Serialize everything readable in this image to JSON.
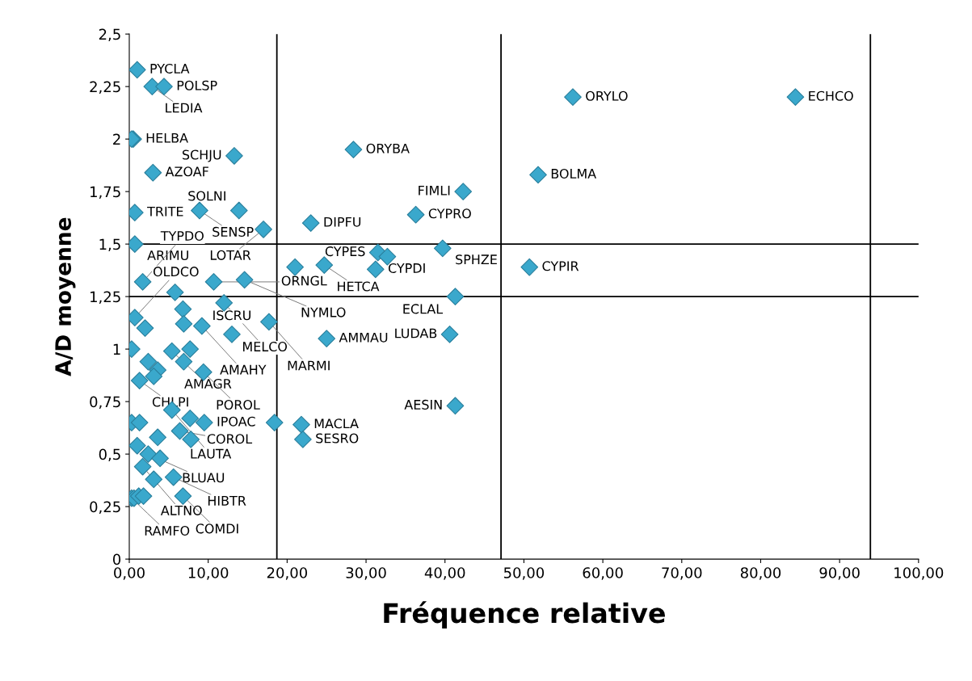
{
  "chart_data": {
    "type": "scatter",
    "xlabel": "Fréquence relative",
    "ylabel": "A/D moyenne",
    "xlim": [
      0,
      100
    ],
    "ylim": [
      0,
      2.5
    ],
    "xticks": [
      {
        "value": 0,
        "label": "0,00"
      },
      {
        "value": 10,
        "label": "10,00"
      },
      {
        "value": 20,
        "label": "20,00"
      },
      {
        "value": 30,
        "label": "30,00"
      },
      {
        "value": 40,
        "label": "40,00"
      },
      {
        "value": 50,
        "label": "50,00"
      },
      {
        "value": 60,
        "label": "60,00"
      },
      {
        "value": 70,
        "label": "70,00"
      },
      {
        "value": 80,
        "label": "80,00"
      },
      {
        "value": 90,
        "label": "90,00"
      },
      {
        "value": 100,
        "label": "100,00"
      }
    ],
    "yticks": [
      0,
      {
        "value": 0.25,
        "label": "0,25"
      },
      {
        "value": 0.5,
        "label": "0,5"
      },
      {
        "value": 0.75,
        "label": "0,75"
      },
      1,
      {
        "value": 1.25,
        "label": "1,25"
      },
      {
        "value": 1.5,
        "label": "1,5"
      },
      {
        "value": 1.75,
        "label": "1,75"
      },
      2,
      {
        "value": 2.25,
        "label": "2,25"
      },
      {
        "value": 2.5,
        "label": "2,5"
      }
    ],
    "marker": "diamond",
    "grid": false,
    "legend": false,
    "series": [
      {
        "color": "#3aa8cc",
        "x": [
          1.0,
          2.9,
          4.4,
          0.5,
          0.3,
          13.3,
          3.0,
          28.4,
          0.7,
          8.9,
          13.9,
          17.0,
          23.0,
          36.3,
          42.3,
          51.8,
          56.2,
          84.4,
          0.7,
          21.0,
          24.7,
          31.2,
          31.5,
          32.7,
          39.7,
          50.7,
          1.7,
          5.8,
          10.7,
          14.6,
          6.8,
          12.0,
          41.3,
          0.7,
          2.0,
          6.9,
          9.2,
          13.0,
          17.7,
          25.0,
          40.6,
          0.3,
          5.4,
          7.7,
          6.9,
          2.4,
          3.6,
          3.1,
          1.3,
          9.4,
          41.3,
          5.4,
          0.3,
          1.3,
          7.7,
          9.5,
          6.4,
          18.4,
          21.8,
          22.0,
          7.8,
          3.6,
          1.0,
          2.4,
          3.9,
          1.7,
          5.6,
          3.1,
          0.3,
          6.8,
          0.6,
          1.2,
          1.8
        ],
        "values": [
          2.33,
          2.25,
          2.25,
          2.0,
          2.0,
          1.92,
          1.84,
          1.95,
          1.65,
          1.66,
          1.66,
          1.57,
          1.6,
          1.64,
          1.75,
          1.83,
          2.2,
          2.2,
          1.5,
          1.39,
          1.4,
          1.38,
          1.46,
          1.44,
          1.48,
          1.39,
          1.32,
          1.27,
          1.32,
          1.33,
          1.19,
          1.22,
          1.25,
          1.15,
          1.1,
          1.12,
          1.11,
          1.07,
          1.13,
          1.05,
          1.07,
          1.0,
          0.99,
          1.0,
          0.94,
          0.94,
          0.9,
          0.87,
          0.85,
          0.89,
          0.73,
          0.71,
          0.65,
          0.65,
          0.67,
          0.65,
          0.61,
          0.65,
          0.64,
          0.57,
          0.57,
          0.58,
          0.54,
          0.5,
          0.48,
          0.44,
          0.39,
          0.38,
          0.29,
          0.3,
          0.29,
          0.3,
          0.3
        ]
      }
    ],
    "annotations": [
      {
        "text": "PYCLA",
        "x": 1.0,
        "y": 2.33
      },
      {
        "text": "LEDIA",
        "x": 2.9,
        "y": 2.25
      },
      {
        "text": "POLSP",
        "x": 4.4,
        "y": 2.25
      },
      {
        "text": "HELBA",
        "x": 0.5,
        "y": 2.0
      },
      {
        "text": "SCHJU",
        "x": 13.3,
        "y": 1.92
      },
      {
        "text": "AZOAF",
        "x": 3.0,
        "y": 1.84
      },
      {
        "text": "ORYBA",
        "x": 28.4,
        "y": 1.95
      },
      {
        "text": "TRITE",
        "x": 0.7,
        "y": 1.65
      },
      {
        "text": "SENSP",
        "x": 8.9,
        "y": 1.66
      },
      {
        "text": "SOLNI",
        "x": 13.9,
        "y": 1.66
      },
      {
        "text": "LOTAR",
        "x": 17.0,
        "y": 1.57
      },
      {
        "text": "DIPFU",
        "x": 23.0,
        "y": 1.6
      },
      {
        "text": "CYPRO",
        "x": 36.3,
        "y": 1.64
      },
      {
        "text": "FIMLI",
        "x": 42.3,
        "y": 1.75
      },
      {
        "text": "BOLMA",
        "x": 51.8,
        "y": 1.83
      },
      {
        "text": "ORYLO",
        "x": 56.2,
        "y": 2.2
      },
      {
        "text": "ECHCO",
        "x": 84.4,
        "y": 2.2
      },
      {
        "text": "ARIMU",
        "x": 0.7,
        "y": 1.5
      },
      {
        "text": "HETCA",
        "x": 24.7,
        "y": 1.4
      },
      {
        "text": "CYPDI",
        "x": 31.2,
        "y": 1.38
      },
      {
        "text": "CYPES",
        "x": 31.5,
        "y": 1.46
      },
      {
        "text": "SPHZE",
        "x": 39.7,
        "y": 1.48
      },
      {
        "text": "CYPIR",
        "x": 50.7,
        "y": 1.39
      },
      {
        "text": "TYPDO",
        "x": 1.7,
        "y": 1.32
      },
      {
        "text": "ORNGL",
        "x": 10.7,
        "y": 1.32
      },
      {
        "text": "NYMLO",
        "x": 14.6,
        "y": 1.33
      },
      {
        "text": "MELCO",
        "x": 12.0,
        "y": 1.22
      },
      {
        "text": "ECLAL",
        "x": 41.3,
        "y": 1.25
      },
      {
        "text": "OLDCO",
        "x": 0.7,
        "y": 1.15
      },
      {
        "text": "AMAHY",
        "x": 9.2,
        "y": 1.11
      },
      {
        "text": "ISCRU",
        "x": 13.0,
        "y": 1.07
      },
      {
        "text": "MARMI",
        "x": 17.7,
        "y": 1.13
      },
      {
        "text": "AMMAU",
        "x": 25.0,
        "y": 1.05
      },
      {
        "text": "LUDAB",
        "x": 40.6,
        "y": 1.07
      },
      {
        "text": "AMAGR",
        "x": 5.4,
        "y": 0.99
      },
      {
        "text": "CHLPI",
        "x": 1.3,
        "y": 0.85
      },
      {
        "text": "POROL",
        "x": 9.4,
        "y": 0.89
      },
      {
        "text": "AESIN",
        "x": 41.3,
        "y": 0.73
      },
      {
        "text": "LAUTA",
        "x": 5.4,
        "y": 0.71
      },
      {
        "text": "IPOAC",
        "x": 9.5,
        "y": 0.65
      },
      {
        "text": "COROL",
        "x": 6.4,
        "y": 0.61
      },
      {
        "text": "MACLA",
        "x": 21.8,
        "y": 0.64
      },
      {
        "text": "SESRO",
        "x": 22.0,
        "y": 0.57
      },
      {
        "text": "BLUAU",
        "x": 2.4,
        "y": 0.5
      },
      {
        "text": "ALTNO",
        "x": 1.7,
        "y": 0.44
      },
      {
        "text": "HIBTR",
        "x": 5.6,
        "y": 0.39
      },
      {
        "text": "RAMFO",
        "x": 0.3,
        "y": 0.29
      },
      {
        "text": "COMDI",
        "x": 6.8,
        "y": 0.3
      }
    ],
    "ref_lines": [
      {
        "axis": "x",
        "value": 18.7,
        "color": "#000000"
      },
      {
        "axis": "x",
        "value": 47.1,
        "color": "#000000"
      },
      {
        "axis": "x",
        "value": 93.9,
        "color": "#000000"
      },
      {
        "axis": "y",
        "value": 1.5,
        "color": "#000000"
      },
      {
        "axis": "y",
        "value": 1.25,
        "color": "#000000"
      }
    ]
  }
}
